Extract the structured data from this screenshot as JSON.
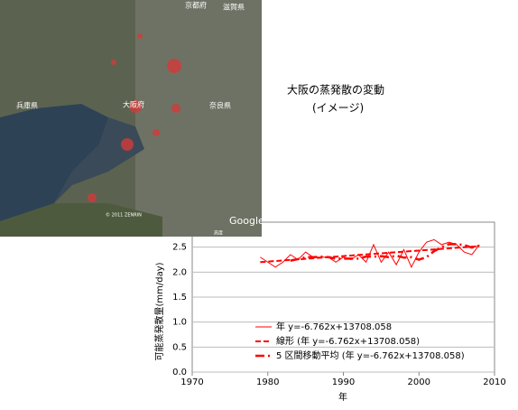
{
  "map": {
    "labels": [
      "京都府",
      "滋賀県",
      "兵庫県",
      "大阪府",
      "奈良県"
    ],
    "logo": "Google",
    "credit": "© 2011 ZENRIN",
    "scale": "高度"
  },
  "caption": {
    "title": "大阪の蒸発散の変動",
    "note": "(イメージ)"
  },
  "chart_data": {
    "type": "line",
    "xlabel": "年",
    "ylabel": "可能蒸発散量(mm/day)",
    "xlim": [
      1970,
      2010
    ],
    "xticks": [
      1970,
      1980,
      1990,
      2000,
      2010
    ],
    "ylim": [
      0,
      3
    ],
    "yticks": [
      {
        "value": 0,
        "label": "0.0"
      },
      {
        "value": 0.5,
        "label": "0.5"
      },
      {
        "value": 1,
        "label": "1.0"
      },
      {
        "value": 1.5,
        "label": "1.5"
      },
      {
        "value": 2,
        "label": "2.0"
      },
      {
        "value": 2.5,
        "label": "2.5"
      }
    ],
    "grid": true,
    "series": [
      {
        "name": "年 y=-6.762x+13708.058",
        "color": "#ff0000",
        "linestyle": "solid",
        "x": [
          1979,
          1980,
          1981,
          1982,
          1983,
          1984,
          1985,
          1986,
          1987,
          1988,
          1989,
          1990,
          1991,
          1992,
          1993,
          1994,
          1995,
          1996,
          1997,
          1998,
          1999,
          2000,
          2001,
          2002,
          2003,
          2004,
          2005,
          2006,
          2007,
          2008
        ],
        "values": [
          2.3,
          2.2,
          2.1,
          2.2,
          2.35,
          2.25,
          2.4,
          2.3,
          2.3,
          2.3,
          2.2,
          2.3,
          2.25,
          2.35,
          2.2,
          2.55,
          2.2,
          2.4,
          2.15,
          2.45,
          2.1,
          2.4,
          2.6,
          2.65,
          2.55,
          2.6,
          2.55,
          2.4,
          2.35,
          2.55
        ]
      },
      {
        "name": "線形 (年 y=-6.762x+13708.058)",
        "color": "#ff0000",
        "linestyle": "dashed",
        "x": [
          1979,
          2008
        ],
        "values": [
          2.2,
          2.52
        ]
      },
      {
        "name": "5 区間移動平均 (年 y=-6.762x+13708.058)",
        "color": "#ff0000",
        "linestyle": "dashdot",
        "x": [
          1983,
          1984,
          1985,
          1986,
          1987,
          1988,
          1989,
          1990,
          1991,
          1992,
          1993,
          1994,
          1995,
          1996,
          1997,
          1998,
          1999,
          2000,
          2001,
          2002,
          2003,
          2004,
          2005,
          2006,
          2007,
          2008
        ],
        "values": [
          2.23,
          2.26,
          2.3,
          2.3,
          2.31,
          2.3,
          2.27,
          2.27,
          2.27,
          2.27,
          2.31,
          2.31,
          2.32,
          2.3,
          2.33,
          2.29,
          2.3,
          2.25,
          2.3,
          2.42,
          2.5,
          2.56,
          2.56,
          2.54,
          2.49,
          2.53
        ]
      }
    ]
  }
}
